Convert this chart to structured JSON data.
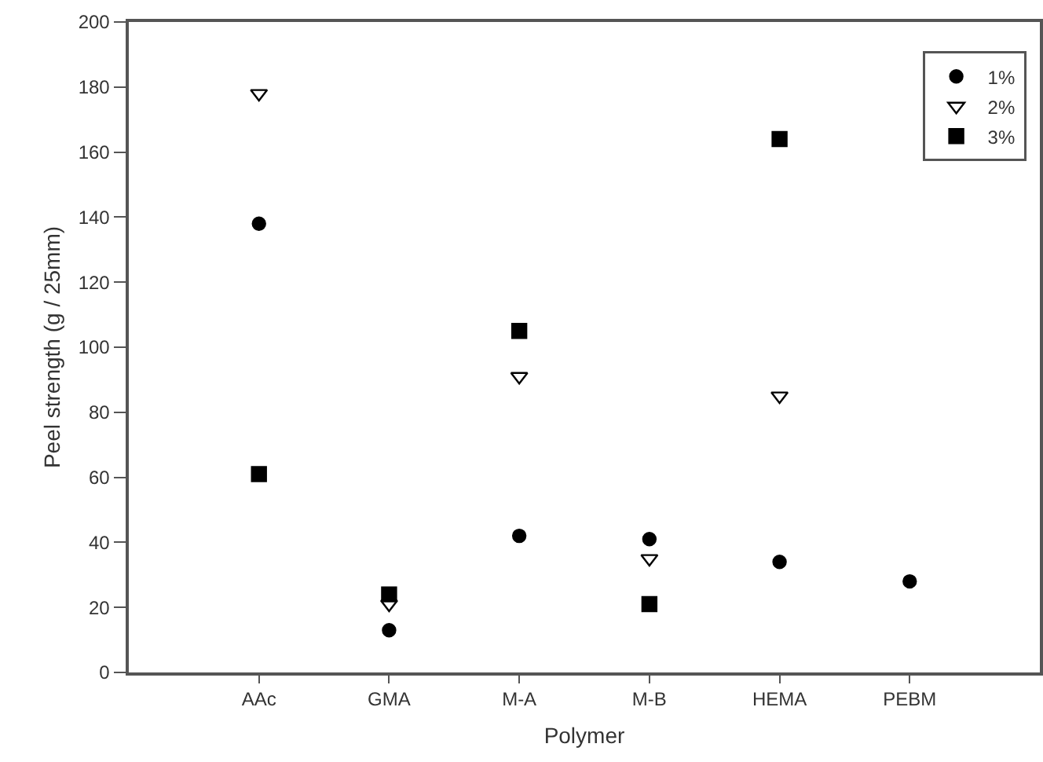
{
  "chart_data": {
    "type": "scatter",
    "xlabel": "Polymer",
    "ylabel": "Peel strength (g / 25mm)",
    "categories": [
      "AAc",
      "GMA",
      "M-A",
      "M-B",
      "HEMA",
      "PEBM"
    ],
    "series": [
      {
        "name": "1%",
        "color": "#000000",
        "marker": "circle",
        "values": [
          138,
          13,
          42,
          41,
          34,
          28
        ]
      },
      {
        "name": "2%",
        "color": "#000000",
        "marker": "triangle",
        "values": [
          178,
          21,
          91,
          35,
          85,
          null
        ]
      },
      {
        "name": "3%",
        "color": "#000000",
        "marker": "square",
        "values": [
          61,
          24,
          105,
          21,
          164,
          null
        ]
      }
    ],
    "ylim": [
      0,
      200
    ],
    "yticks": [
      0,
      20,
      40,
      60,
      80,
      100,
      120,
      140,
      160,
      180,
      200
    ],
    "grid": false,
    "legend": "top right"
  }
}
